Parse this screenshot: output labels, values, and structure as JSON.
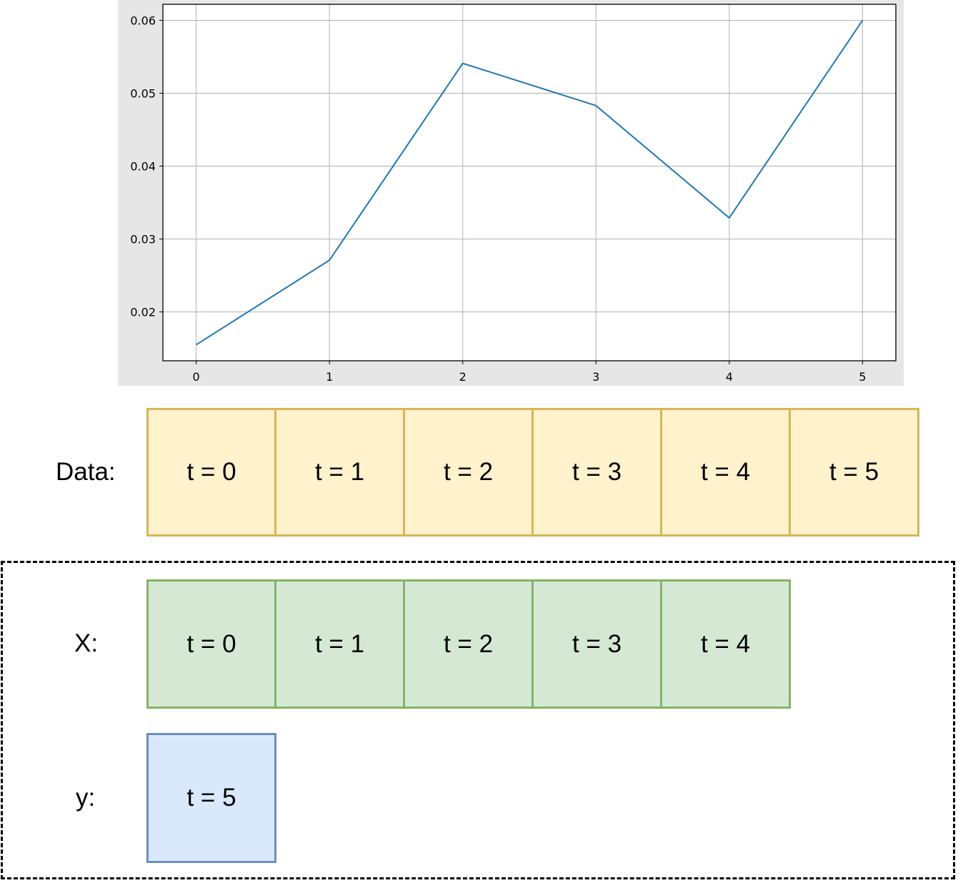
{
  "chart_data": {
    "type": "line",
    "x": [
      0,
      1,
      2,
      3,
      4,
      5
    ],
    "series": [
      {
        "values": [
          0.0155,
          0.0271,
          0.0541,
          0.0483,
          0.0329,
          0.06
        ],
        "color": "#1f77b4"
      }
    ],
    "xticks": [
      "0",
      "1",
      "2",
      "3",
      "4",
      "5"
    ],
    "yticks": [
      "0.02",
      "0.03",
      "0.04",
      "0.05",
      "0.06"
    ],
    "ytick_values": [
      0.02,
      0.03,
      0.04,
      0.05,
      0.06
    ],
    "xlim": [
      -0.25,
      5.25
    ],
    "ylim": [
      0.0133,
      0.0622
    ],
    "grid": true,
    "title": "",
    "xlabel": "",
    "ylabel": ""
  },
  "data_row": {
    "label": "Data:",
    "cells": [
      "t = 0",
      "t = 1",
      "t = 2",
      "t = 3",
      "t = 4",
      "t = 5"
    ]
  },
  "x_row": {
    "label": "X:",
    "cells": [
      "t = 0",
      "t = 1",
      "t = 2",
      "t = 3",
      "t = 4"
    ]
  },
  "y_row": {
    "label": "y:",
    "cells": [
      "t = 5"
    ]
  },
  "colors": {
    "data_fill": "#fff2cc",
    "data_border": "#d6b656",
    "x_fill": "#d5e8d4",
    "x_border": "#82b366",
    "y_fill": "#dae8fc",
    "y_border": "#6c8ebf",
    "chart_background": "#e6e6e6",
    "line": "#1f77b4"
  }
}
